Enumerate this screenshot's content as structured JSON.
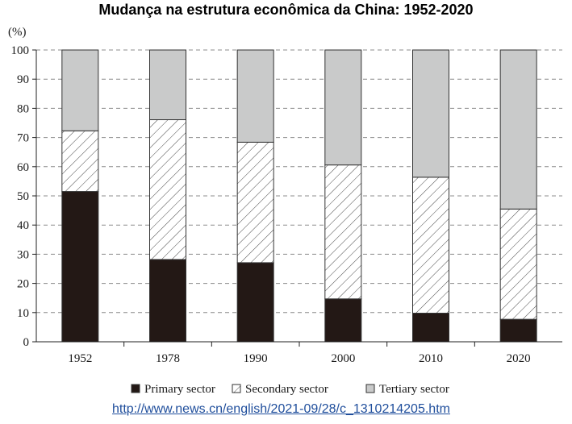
{
  "chart_data": {
    "type": "bar",
    "stacked": true,
    "title": "Mudança na estrutura econômica da China: 1952-2020",
    "ylabel": "(%)",
    "ylim": [
      0,
      100
    ],
    "yticks": [
      0,
      10,
      20,
      30,
      40,
      50,
      60,
      70,
      80,
      90,
      100
    ],
    "grid": true,
    "legend_position": "bottom",
    "categories": [
      "1952",
      "1978",
      "1990",
      "2000",
      "2010",
      "2020"
    ],
    "series": [
      {
        "name": "Primary sector",
        "color": "#231815",
        "pattern": "solid",
        "values": [
          51.5,
          28.2,
          27.1,
          14.7,
          9.8,
          7.7
        ]
      },
      {
        "name": "Secondary sector",
        "color": "#ffffff",
        "pattern": "hatch",
        "values": [
          20.8,
          47.9,
          41.3,
          45.9,
          46.6,
          37.8
        ]
      },
      {
        "name": "Tertiary sector",
        "color": "#c9caca",
        "pattern": "solid",
        "values": [
          27.7,
          23.9,
          31.6,
          39.4,
          43.6,
          54.5
        ]
      }
    ]
  },
  "source_link": "http://www.news.cn/english/2021-09/28/c_1310214205.htm"
}
